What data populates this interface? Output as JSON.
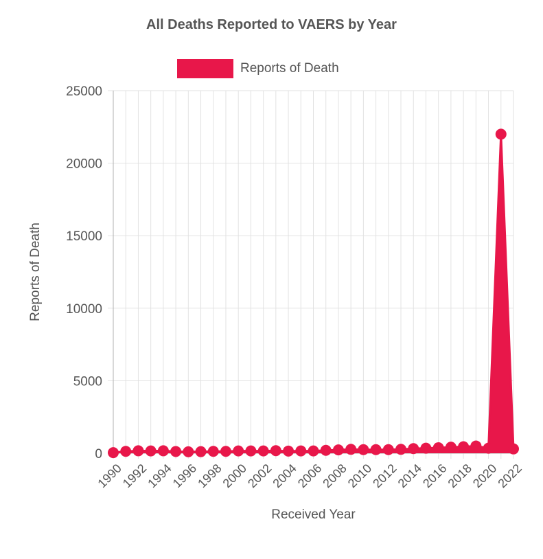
{
  "chart_data": {
    "type": "area",
    "title": "All Deaths Reported to VAERS by Year",
    "xlabel": "Received Year",
    "ylabel": "Reports of Death",
    "legend": {
      "entries": [
        "Reports of Death"
      ],
      "placement": "top-center"
    },
    "grid": true,
    "ylim": [
      0,
      25000
    ],
    "y_ticks": [
      "25000",
      "20000",
      "15000",
      "10000",
      "5000",
      "0"
    ],
    "x_tick_labels": [
      "1990",
      "1992",
      "1994",
      "1996",
      "1998",
      "2000",
      "2002",
      "2004",
      "2006",
      "2008",
      "2010",
      "2012",
      "2014",
      "2016",
      "2018",
      "2020",
      "2022"
    ],
    "x": [
      1990,
      1991,
      1992,
      1993,
      1994,
      1995,
      1996,
      1997,
      1998,
      1999,
      2000,
      2001,
      2002,
      2003,
      2004,
      2005,
      2006,
      2007,
      2008,
      2009,
      2010,
      2011,
      2012,
      2013,
      2014,
      2015,
      2016,
      2017,
      2018,
      2019,
      2020,
      2021,
      2022
    ],
    "series": [
      {
        "name": "Reports of Death",
        "color": "#e8174a",
        "values": [
          40,
          130,
          170,
          160,
          170,
          120,
          100,
          110,
          130,
          130,
          160,
          160,
          160,
          180,
          150,
          160,
          160,
          200,
          230,
          270,
          250,
          250,
          250,
          270,
          320,
          350,
          380,
          420,
          450,
          500,
          350,
          22000,
          300
        ]
      }
    ]
  }
}
